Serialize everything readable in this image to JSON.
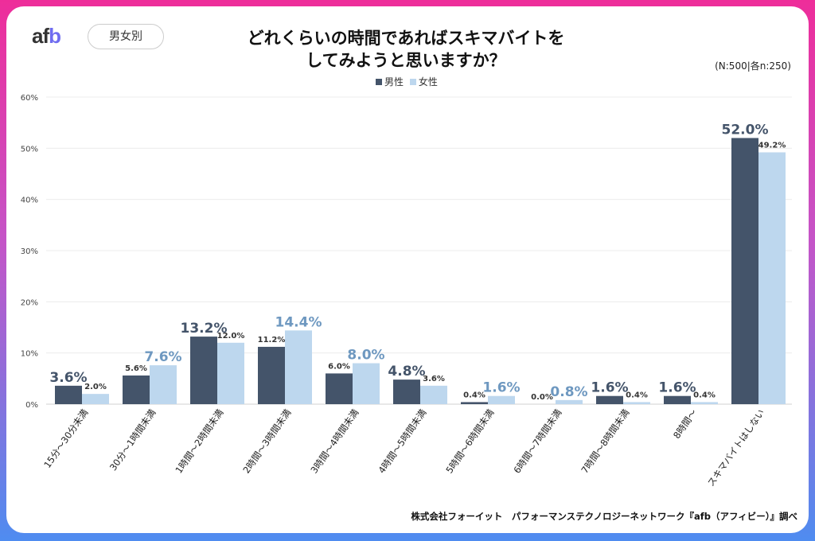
{
  "header": {
    "logo": "afb",
    "badge": "男女別",
    "title_line1": "どれくらいの時間であればスキマバイトを",
    "title_line2": "してみようと思いますか？",
    "sample_note": "(N:500|各n:250)"
  },
  "footer": {
    "source": "株式会社フォーイット　パフォーマンステクノロジーネットワーク『afb（アフィビー）』調べ"
  },
  "chart_data": {
    "type": "bar",
    "categories": [
      "15分～30分未満",
      "30分～1時間未満",
      "1時間～2時間未満",
      "2時間～3時間未満",
      "3時間～4時間未満",
      "4時間～5時間未満",
      "5時間～6時間未満",
      "6時間～7時間未満",
      "7時間～8時間未満",
      "8時間～",
      "スキマバイトはしない"
    ],
    "series": [
      {
        "name": "男性",
        "color": "#44546a",
        "label_color": "#44546a",
        "values": [
          3.6,
          5.6,
          13.2,
          11.2,
          6.0,
          4.8,
          0.4,
          0.0,
          1.6,
          1.6,
          52.0
        ]
      },
      {
        "name": "女性",
        "color": "#bdd7ee",
        "label_color": "#6e98c0",
        "values": [
          2.0,
          7.6,
          12.0,
          14.4,
          8.0,
          3.6,
          1.6,
          0.8,
          0.4,
          0.4,
          49.2
        ]
      }
    ],
    "ylim": [
      0,
      60
    ],
    "yticks": [
      "0%",
      "10%",
      "20%",
      "30%",
      "40%",
      "50%",
      "60%"
    ],
    "grid": true,
    "legend": "top-center",
    "value_format": "percent-1dp"
  }
}
